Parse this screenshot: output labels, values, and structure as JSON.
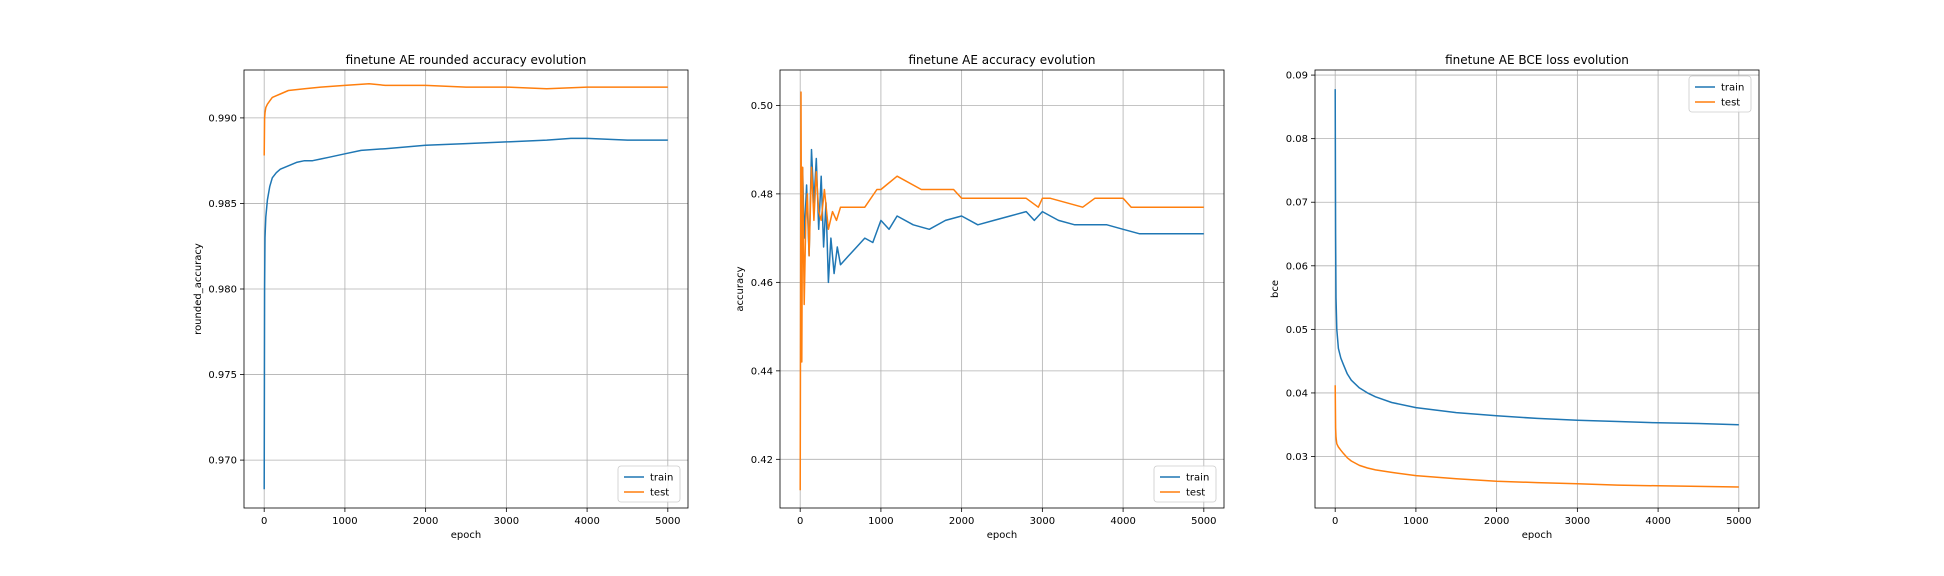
{
  "colors": {
    "train": "#1f77b4",
    "test": "#ff7f0e",
    "grid": "#b0b0b0"
  },
  "chart_data": [
    {
      "type": "line",
      "title": "finetune AE rounded accuracy evolution",
      "xlabel": "epoch",
      "ylabel": "rounded_accuracy",
      "xlim": [
        -250,
        5250
      ],
      "ylim": [
        0.9672,
        0.9928
      ],
      "xticks": [
        0,
        1000,
        2000,
        3000,
        4000,
        5000
      ],
      "xtick_labels": [
        "0",
        "1000",
        "2000",
        "3000",
        "4000",
        "5000"
      ],
      "yticks": [
        0.97,
        0.975,
        0.98,
        0.985,
        0.99
      ],
      "ytick_labels": [
        "0.970",
        "0.975",
        "0.980",
        "0.985",
        "0.990"
      ],
      "grid": true,
      "legend_position": "lower-right",
      "series": [
        {
          "name": "train",
          "x": [
            0,
            5,
            10,
            20,
            40,
            70,
            100,
            150,
            200,
            300,
            400,
            500,
            600,
            700,
            800,
            1000,
            1200,
            1500,
            2000,
            2500,
            3000,
            3500,
            3800,
            4000,
            4500,
            5000
          ],
          "y": [
            0.9683,
            0.98,
            0.983,
            0.9842,
            0.9852,
            0.986,
            0.9865,
            0.9868,
            0.987,
            0.9872,
            0.9874,
            0.9875,
            0.9875,
            0.9876,
            0.9877,
            0.9879,
            0.9881,
            0.9882,
            0.9884,
            0.9885,
            0.9886,
            0.9887,
            0.9888,
            0.9888,
            0.9887,
            0.9887
          ]
        },
        {
          "name": "test",
          "x": [
            0,
            5,
            10,
            20,
            40,
            70,
            100,
            150,
            200,
            300,
            500,
            700,
            1000,
            1300,
            1500,
            2000,
            2500,
            3000,
            3500,
            4000,
            4500,
            5000
          ],
          "y": [
            0.9878,
            0.99,
            0.9903,
            0.9906,
            0.9908,
            0.991,
            0.9912,
            0.9913,
            0.9914,
            0.9916,
            0.9917,
            0.9918,
            0.9919,
            0.992,
            0.9919,
            0.9919,
            0.9918,
            0.9918,
            0.9917,
            0.9918,
            0.9918,
            0.9918
          ]
        }
      ]
    },
    {
      "type": "line",
      "title": "finetune AE accuracy evolution",
      "xlabel": "epoch",
      "ylabel": "accuracy",
      "xlim": [
        -250,
        5250
      ],
      "ylim": [
        0.409,
        0.508
      ],
      "xticks": [
        0,
        1000,
        2000,
        3000,
        4000,
        5000
      ],
      "xtick_labels": [
        "0",
        "1000",
        "2000",
        "3000",
        "4000",
        "5000"
      ],
      "yticks": [
        0.42,
        0.44,
        0.46,
        0.48,
        0.5
      ],
      "ytick_labels": [
        "0.42",
        "0.44",
        "0.46",
        "0.48",
        "0.50"
      ],
      "grid": true,
      "legend_position": "lower-right",
      "series": [
        {
          "name": "train",
          "x": [
            30,
            50,
            80,
            110,
            140,
            170,
            200,
            230,
            260,
            290,
            320,
            350,
            380,
            420,
            460,
            500,
            600,
            700,
            800,
            900,
            1000,
            1100,
            1200,
            1400,
            1600,
            1800,
            2000,
            2200,
            2400,
            2600,
            2800,
            2900,
            3000,
            3100,
            3200,
            3400,
            3600,
            3800,
            4000,
            4200,
            4400,
            4600,
            4800,
            5000
          ],
          "y": [
            0.486,
            0.47,
            0.482,
            0.466,
            0.49,
            0.478,
            0.488,
            0.472,
            0.484,
            0.468,
            0.478,
            0.46,
            0.47,
            0.462,
            0.468,
            0.464,
            0.466,
            0.468,
            0.47,
            0.469,
            0.474,
            0.472,
            0.475,
            0.473,
            0.472,
            0.474,
            0.475,
            0.473,
            0.474,
            0.475,
            0.476,
            0.474,
            0.476,
            0.475,
            0.474,
            0.473,
            0.473,
            0.473,
            0.472,
            0.471,
            0.471,
            0.471,
            0.471,
            0.471
          ]
        },
        {
          "name": "test",
          "x": [
            0,
            10,
            20,
            30,
            50,
            70,
            90,
            110,
            140,
            170,
            200,
            230,
            260,
            300,
            350,
            400,
            450,
            500,
            600,
            700,
            800,
            950,
            1000,
            1200,
            1500,
            1900,
            2000,
            2400,
            2800,
            2950,
            3000,
            3100,
            3500,
            3650,
            3700,
            4000,
            4100,
            4500,
            5000
          ],
          "y": [
            0.413,
            0.503,
            0.442,
            0.486,
            0.455,
            0.474,
            0.48,
            0.466,
            0.486,
            0.474,
            0.485,
            0.476,
            0.474,
            0.481,
            0.472,
            0.476,
            0.474,
            0.477,
            0.477,
            0.477,
            0.477,
            0.481,
            0.481,
            0.484,
            0.481,
            0.481,
            0.479,
            0.479,
            0.479,
            0.477,
            0.479,
            0.479,
            0.477,
            0.479,
            0.479,
            0.479,
            0.477,
            0.477,
            0.477
          ]
        }
      ]
    },
    {
      "type": "line",
      "title": "finetune AE BCE loss evolution",
      "xlabel": "epoch",
      "ylabel": "bce",
      "xlim": [
        -250,
        5250
      ],
      "ylim": [
        0.0219,
        0.0908
      ],
      "xticks": [
        0,
        1000,
        2000,
        3000,
        4000,
        5000
      ],
      "xtick_labels": [
        "0",
        "1000",
        "2000",
        "3000",
        "4000",
        "5000"
      ],
      "yticks": [
        0.03,
        0.04,
        0.05,
        0.06,
        0.07,
        0.08,
        0.09
      ],
      "ytick_labels": [
        "0.03",
        "0.04",
        "0.05",
        "0.06",
        "0.07",
        "0.08",
        "0.09"
      ],
      "grid": true,
      "legend_position": "upper-right",
      "series": [
        {
          "name": "train",
          "x": [
            0,
            5,
            10,
            20,
            40,
            70,
            100,
            150,
            200,
            300,
            400,
            500,
            700,
            1000,
            1500,
            2000,
            2500,
            3000,
            3500,
            4000,
            4500,
            5000
          ],
          "y": [
            0.0878,
            0.065,
            0.055,
            0.05,
            0.047,
            0.0455,
            0.0445,
            0.043,
            0.042,
            0.0408,
            0.04,
            0.0394,
            0.0385,
            0.0377,
            0.0369,
            0.0364,
            0.036,
            0.0357,
            0.0355,
            0.0353,
            0.0352,
            0.035
          ]
        },
        {
          "name": "test",
          "x": [
            0,
            5,
            10,
            20,
            40,
            70,
            100,
            150,
            200,
            300,
            400,
            500,
            700,
            1000,
            1500,
            2000,
            2500,
            3000,
            3500,
            4000,
            4500,
            5000
          ],
          "y": [
            0.0412,
            0.0345,
            0.033,
            0.032,
            0.0315,
            0.031,
            0.0305,
            0.0298,
            0.0293,
            0.0286,
            0.0282,
            0.0279,
            0.0275,
            0.027,
            0.0265,
            0.0261,
            0.0259,
            0.0257,
            0.0255,
            0.0254,
            0.0253,
            0.0252
          ]
        }
      ]
    }
  ]
}
